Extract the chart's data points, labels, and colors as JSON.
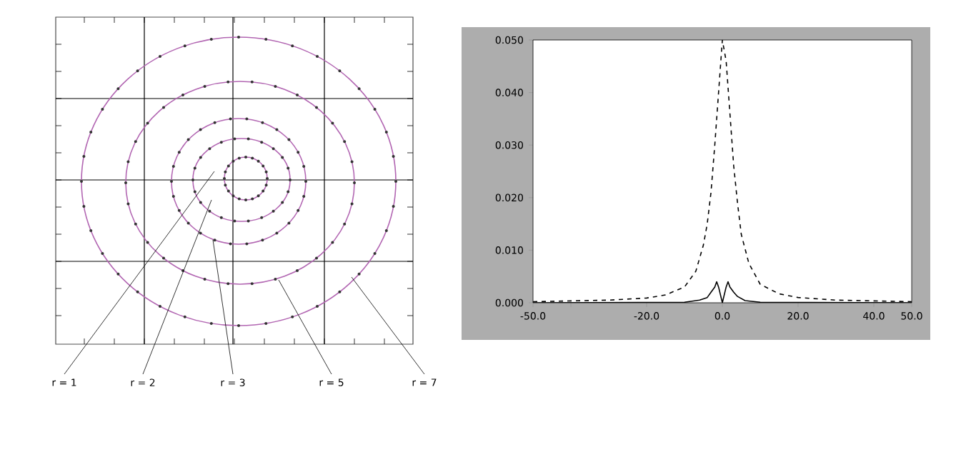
{
  "chart_data": [
    {
      "type": "other",
      "annotations": [
        "r = 1",
        "r = 2",
        "r = 3",
        "r = 5",
        "r = 7"
      ]
    },
    {
      "type": "line",
      "xlim": [
        -50,
        50
      ],
      "ylim": [
        0,
        0.05
      ],
      "xticks": [
        {
          "value": -50,
          "label": "-50.0"
        },
        {
          "value": -40,
          "label": null
        },
        {
          "value": -20,
          "label": "-20.0"
        },
        {
          "value": 0,
          "label": "0.0"
        },
        {
          "value": 20,
          "label": "20.0"
        },
        {
          "value": 40,
          "label": "40.0"
        },
        {
          "value": 50,
          "label": "50.0"
        }
      ],
      "yticks": [
        {
          "value": 0,
          "label": "0.000"
        },
        {
          "value": 0.01,
          "label": "0.010"
        },
        {
          "value": 0.02,
          "label": "0.020"
        },
        {
          "value": 0.03,
          "label": "0.030"
        },
        {
          "value": 0.04,
          "label": "0.040"
        },
        {
          "value": 0.05,
          "label": "0.050"
        }
      ],
      "series": [
        {
          "color": "#000000",
          "line_style": "dashed",
          "x": [
            -50,
            -30,
            -20,
            -15,
            -10,
            -7,
            -5,
            -4,
            -3,
            -2,
            -1,
            0,
            1,
            2,
            3,
            4,
            5,
            7,
            10,
            15,
            20,
            30,
            50
          ],
          "values": [
            0.0002,
            0.0005,
            0.0009,
            0.0015,
            0.003,
            0.006,
            0.011,
            0.015,
            0.021,
            0.03,
            0.04,
            0.05,
            0.046,
            0.036,
            0.026,
            0.019,
            0.013,
            0.0075,
            0.0035,
            0.0017,
            0.001,
            0.0005,
            0.0002
          ]
        },
        {
          "color": "#000000",
          "line_style": "solid",
          "x": [
            -50,
            -10,
            -6,
            -4,
            -3,
            -2,
            -1.5,
            -1,
            -0.5,
            0,
            0.5,
            1,
            1.5,
            2,
            3,
            4,
            6,
            10,
            50
          ],
          "values": [
            0,
            0.0001,
            0.0005,
            0.001,
            0.002,
            0.003,
            0.004,
            0.003,
            0.0015,
            0,
            0.0015,
            0.003,
            0.004,
            0.003,
            0.002,
            0.0012,
            0.0004,
            0.0001,
            0
          ]
        }
      ]
    }
  ]
}
